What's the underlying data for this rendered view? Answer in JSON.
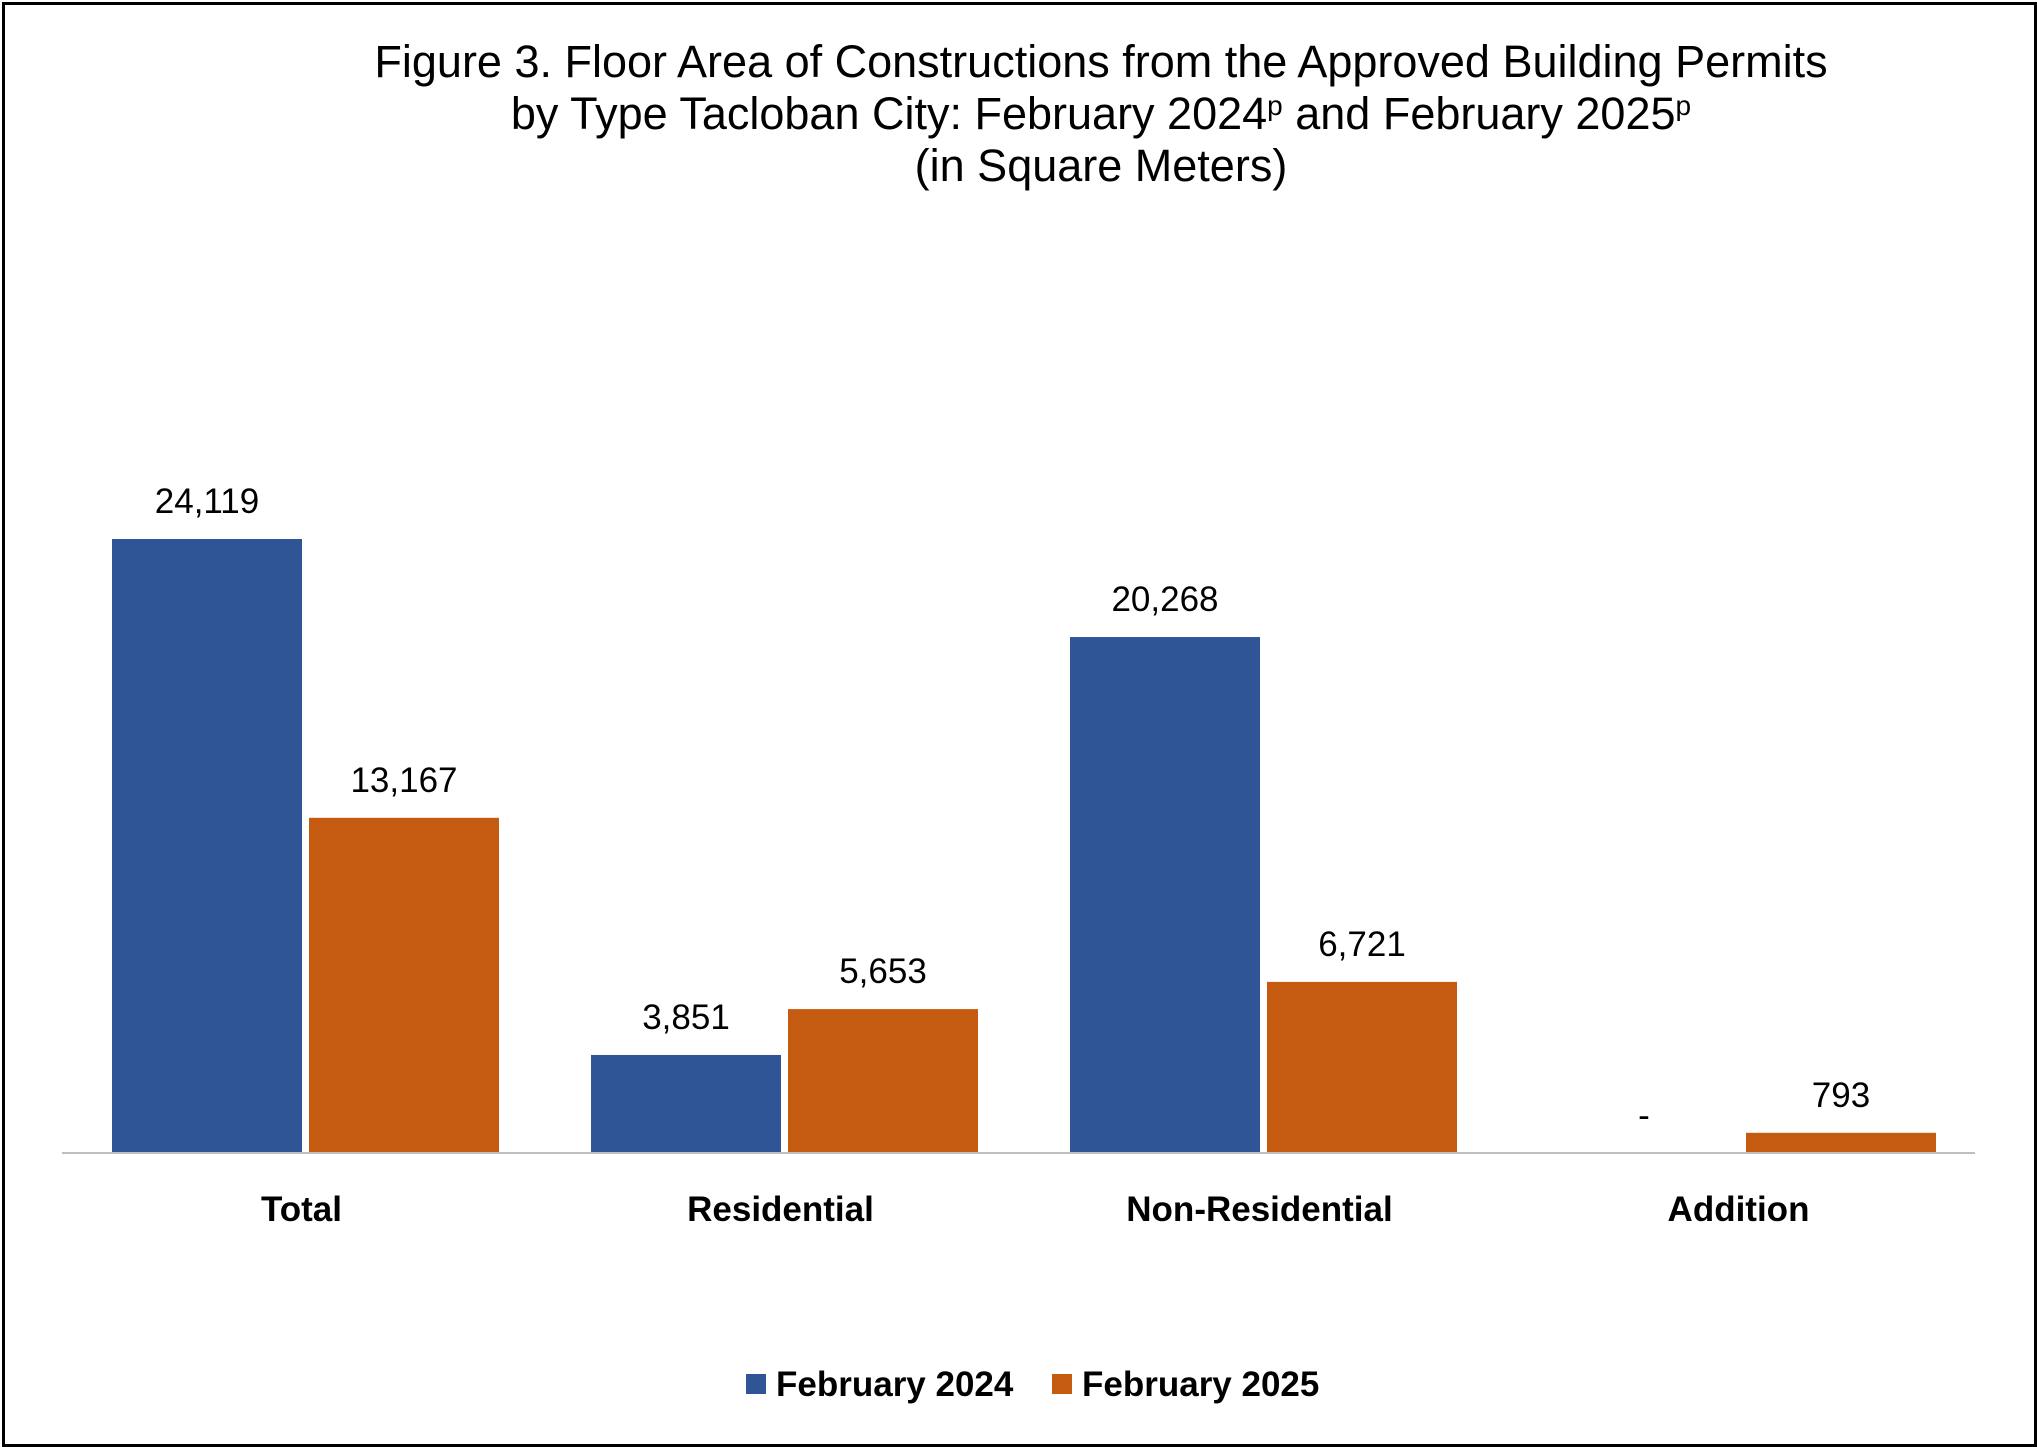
{
  "chart_data": {
    "type": "bar",
    "title_lines": [
      {
        "text": "Figure 3. Floor Area of Constructions from the Approved Building Permits",
        "parts": []
      },
      {
        "text": "",
        "parts": [
          {
            "t": "by Type Tacloban City: February 2024",
            "sup": false
          },
          {
            "t": "p",
            "sup": true
          },
          {
            "t": " and February 2025",
            "sup": false
          },
          {
            "t": "p",
            "sup": true
          }
        ]
      },
      {
        "text": "(in Square Meters)",
        "parts": []
      }
    ],
    "categories": [
      "Total",
      "Residential",
      "Non-Residential",
      "Addition"
    ],
    "series": [
      {
        "name": "February 2024",
        "color": "#2F5597",
        "values": [
          24119,
          3851,
          20268,
          0
        ],
        "labels": [
          "24,119",
          "3,851",
          "20,268",
          "-"
        ]
      },
      {
        "name": "February 2025",
        "color": "#C55A11",
        "values": [
          13167,
          5653,
          6721,
          793
        ],
        "labels": [
          "13,167",
          "5,653",
          "6,721",
          "793"
        ]
      }
    ],
    "ylim": [
      0,
      24119
    ],
    "grid": false,
    "legend_position": "bottom"
  }
}
